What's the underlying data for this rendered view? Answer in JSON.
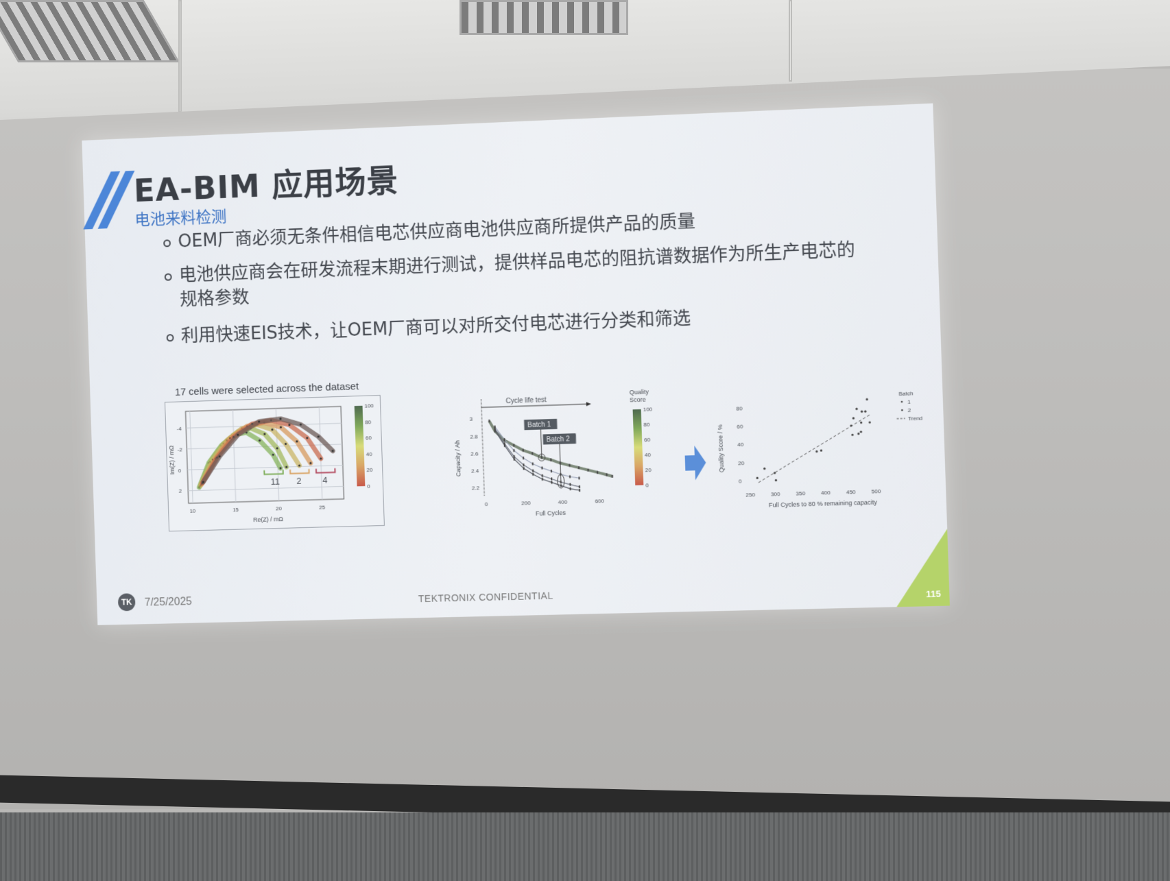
{
  "slide": {
    "title": "EA-BIM 应用场景",
    "subtitle": "电池来料检测",
    "bullets": [
      "OEM厂商必须无条件相信电芯供应商电池供应商所提供产品的质量",
      "电池供应商会在研发流程末期进行测试，提供样品电芯的阻抗谱数据作为所生产电芯的",
      "规格参数",
      "利用快速EIS技术，让OEM厂商可以对所交付电芯进行分类和筛选"
    ],
    "figure_caption": "17 cells were selected across the dataset",
    "footer": {
      "logo_text": "TK",
      "date": "7/25/2025",
      "confidential": "TEKTRONIX CONFIDENTIAL",
      "page": "115"
    },
    "colors": {
      "accent": "#4c86d8",
      "corner": "#b5d36a",
      "arrow": "#5b8fd9"
    }
  },
  "chart_data": [
    {
      "type": "scatter",
      "xlabel": "Re(Z) / mΩ",
      "ylabel": "Im(Z) / mΩ",
      "xlim": [
        9.5,
        27.5
      ],
      "ylim": [
        3.2,
        -5.6
      ],
      "xticks": [
        "10",
        "15",
        "20",
        "25"
      ],
      "yticks": [
        "-4",
        "-2",
        "0",
        "2"
      ],
      "grid": true,
      "colorbar": {
        "ticks": [
          "100",
          "80",
          "60",
          "40",
          "20",
          "0"
        ],
        "colors": [
          "#4f6a4f",
          "#7fa85a",
          "#d8dc7a",
          "#d9a566",
          "#c85a4a"
        ]
      },
      "group_labels": [
        {
          "text": "11",
          "x": 19.5,
          "color": "#7fae5a"
        },
        {
          "text": "2",
          "x": 22.5,
          "color": "#d9a566"
        },
        {
          "text": "4",
          "x": 25.5,
          "color": "#b44e63"
        }
      ],
      "series": [
        {
          "color": "#86b35c",
          "x": [
            10.8,
            12,
            13.5,
            15,
            16.5,
            18,
            19.5,
            20.3
          ],
          "y": [
            1.7,
            -0.6,
            -2.2,
            -3.2,
            -3.4,
            -2.6,
            -1.2,
            0.1
          ]
        },
        {
          "color": "#a3b85e",
          "x": [
            10.9,
            12.2,
            13.8,
            15.5,
            17,
            18.6,
            20,
            21
          ],
          "y": [
            1.6,
            -0.7,
            -2.4,
            -3.5,
            -3.8,
            -3.2,
            -1.8,
            0
          ]
        },
        {
          "color": "#c9b466",
          "x": [
            11,
            12.5,
            14.2,
            16,
            17.8,
            19.5,
            21,
            22.5
          ],
          "y": [
            1.5,
            -0.9,
            -2.7,
            -3.8,
            -4.1,
            -3.6,
            -2.2,
            -0.1
          ]
        },
        {
          "color": "#d79a5e",
          "x": [
            11.1,
            12.8,
            14.6,
            16.6,
            18.6,
            20.5,
            22.3,
            23.8
          ],
          "y": [
            1.4,
            -1,
            -2.9,
            -4,
            -4.3,
            -3.8,
            -2.4,
            -0.3
          ]
        },
        {
          "color": "#c96b4f",
          "x": [
            11.2,
            13,
            15,
            17.2,
            19.4,
            21.5,
            23.5,
            25
          ],
          "y": [
            1.3,
            -1.1,
            -3,
            -4.2,
            -4.5,
            -4,
            -2.7,
            -0.7
          ]
        },
        {
          "color": "#6b5a55",
          "x": [
            11.3,
            13.3,
            15.5,
            18,
            20.5,
            22.8,
            24.8,
            26.4
          ],
          "y": [
            1.2,
            -1.2,
            -3.2,
            -4.4,
            -4.6,
            -4,
            -2.8,
            -1.4
          ]
        }
      ]
    },
    {
      "type": "line",
      "title": "Cycle life test",
      "xlabel": "Full Cycles",
      "ylabel": "Capacity / Ah",
      "xlim": [
        -20,
        720
      ],
      "ylim": [
        2.1,
        3.05
      ],
      "xticks": [
        "0",
        "200",
        "400",
        "600"
      ],
      "yticks": [
        "2.2",
        "2.4",
        "2.6",
        "2.8",
        "3"
      ],
      "annotations": [
        {
          "text": "Batch 1",
          "x": 300,
          "y": 2.53
        },
        {
          "text": "Batch 2",
          "x": 400,
          "y": 2.25
        }
      ],
      "colorbar": {
        "title": "Quality Score",
        "ticks": [
          "100",
          "80",
          "60",
          "40",
          "20",
          "0"
        ]
      },
      "series": [
        {
          "color": "#7d8a7a",
          "x": [
            20,
            50,
            100,
            150,
            200,
            250,
            300,
            350,
            400,
            450,
            500,
            550,
            600,
            650,
            680
          ],
          "y": [
            2.97,
            2.85,
            2.74,
            2.68,
            2.62,
            2.58,
            2.53,
            2.5,
            2.46,
            2.43,
            2.4,
            2.37,
            2.34,
            2.31,
            2.29
          ]
        },
        {
          "color": "#9aa3b8",
          "x": [
            50,
            100,
            150,
            200,
            250,
            300,
            350,
            400,
            450,
            500
          ],
          "y": [
            2.9,
            2.75,
            2.62,
            2.53,
            2.46,
            2.41,
            2.37,
            2.33,
            2.3,
            2.28
          ]
        },
        {
          "color": "#6e7380",
          "x": [
            50,
            100,
            150,
            200,
            250,
            300,
            350,
            400,
            450,
            500
          ],
          "y": [
            2.88,
            2.7,
            2.55,
            2.45,
            2.38,
            2.32,
            2.28,
            2.24,
            2.21,
            2.18
          ]
        },
        {
          "color": "#4f535c",
          "x": [
            50,
            100,
            150,
            200,
            250,
            300,
            350,
            400,
            450,
            500
          ],
          "y": [
            2.86,
            2.68,
            2.52,
            2.41,
            2.34,
            2.28,
            2.24,
            2.2,
            2.16,
            2.14
          ]
        }
      ]
    },
    {
      "type": "scatter",
      "xlabel": "Full Cycles to 80 % remaining capacity",
      "ylabel": "Quality Score / %",
      "xlim": [
        245,
        510
      ],
      "ylim": [
        -5,
        88
      ],
      "xticks": [
        "250",
        "300",
        "350",
        "400",
        "450",
        "500"
      ],
      "yticks": [
        "0",
        "20",
        "40",
        "60",
        "80"
      ],
      "legend": {
        "title": "Batch",
        "entries": [
          "1",
          "2",
          "Trend"
        ],
        "placement": "top-right"
      },
      "trend": {
        "x": [
          265,
          490
        ],
        "y": [
          -2,
          68
        ]
      },
      "points": {
        "x": [
          263,
          278,
          298,
          300,
          383,
          392,
          455,
          458,
          453,
          465,
          467,
          472,
          473,
          475,
          482,
          486,
          490
        ],
        "y": [
          3,
          13,
          8,
          0,
          30,
          31,
          47,
          65,
          57,
          75,
          48,
          50,
          60,
          72,
          72,
          85,
          60
        ]
      }
    }
  ]
}
